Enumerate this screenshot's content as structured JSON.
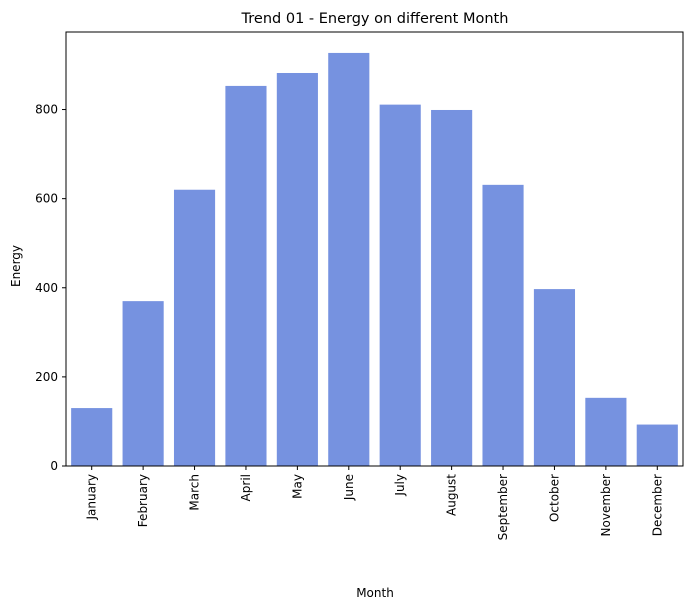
{
  "chart_data": {
    "type": "bar",
    "title": "Trend 01 - Energy on different Month",
    "xlabel": "Month",
    "ylabel": "Energy",
    "categories": [
      "January",
      "February",
      "March",
      "April",
      "May",
      "June",
      "July",
      "August",
      "September",
      "October",
      "November",
      "December"
    ],
    "values": [
      130,
      370,
      620,
      853,
      882,
      927,
      811,
      799,
      631,
      397,
      153,
      93
    ],
    "ylim": [
      0,
      974
    ],
    "yticks": [
      0,
      200,
      400,
      600,
      800
    ],
    "bar_color": "#7692e0",
    "grid": false,
    "legend": false
  }
}
